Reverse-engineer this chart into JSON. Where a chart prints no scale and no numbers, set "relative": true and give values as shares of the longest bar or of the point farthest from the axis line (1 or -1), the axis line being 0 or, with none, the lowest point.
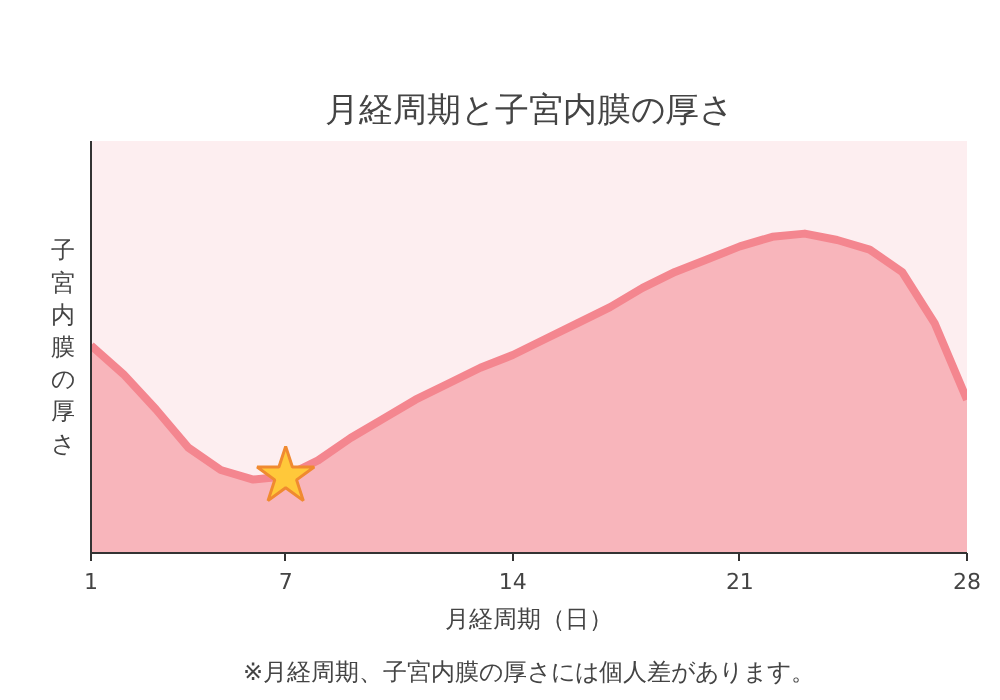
{
  "chart_data": {
    "type": "area",
    "title": "月経周期と子宮内膜の厚さ",
    "xlabel": "月経周期（日）",
    "ylabel": "子宮内膜の厚さ",
    "relative": true,
    "x": [
      1,
      2,
      3,
      4,
      5,
      6,
      7,
      8,
      9,
      10,
      11,
      12,
      13,
      14,
      15,
      16,
      17,
      18,
      19,
      20,
      21,
      22,
      23,
      24,
      25,
      26,
      27,
      28
    ],
    "xlim": [
      1,
      28
    ],
    "xticks": [
      1,
      7,
      14,
      21,
      28
    ],
    "series": [
      {
        "color": "#f4868f",
        "values": [
          0.65,
          0.56,
          0.45,
          0.33,
          0.26,
          0.23,
          0.24,
          0.29,
          0.36,
          0.42,
          0.48,
          0.53,
          0.58,
          0.62,
          0.67,
          0.72,
          0.77,
          0.83,
          0.88,
          0.92,
          0.96,
          0.99,
          1.0,
          0.98,
          0.95,
          0.88,
          0.72,
          0.48
        ]
      },
      {
        "type": "scatter",
        "x": [
          7
        ],
        "values": [
          0.24
        ],
        "color": "#ffc83a",
        "marker": "star"
      }
    ],
    "annotations": [
      "※月経周期、子宮内膜の厚さには個人差があります。"
    ],
    "grid": false
  }
}
